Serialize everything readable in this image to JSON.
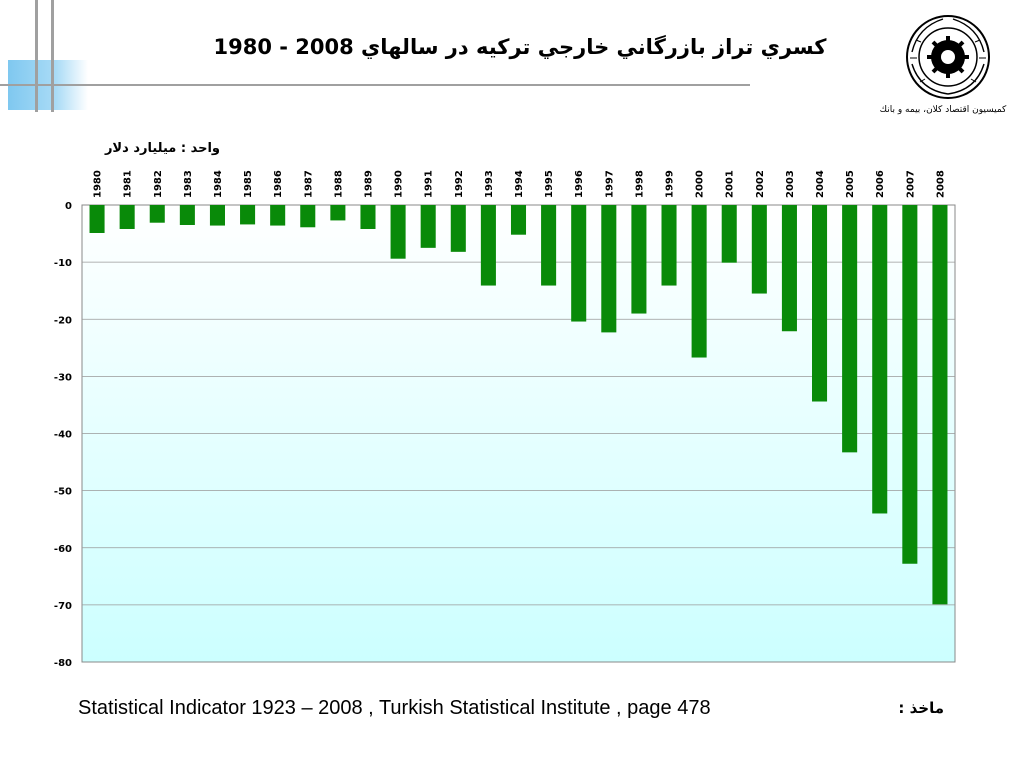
{
  "slide": {
    "title": "كسري تراز بازرگاني خارجي تركيه در سالهاي 2008 - 1980",
    "unit_label": "واحد : ميليارد دلار",
    "organization": "كميسيون اقتصاد كلان، بيمه و بانك",
    "source_label": "ماخذ :",
    "source_text": "Statistical Indicator 1923 – 2008 , Turkish Statistical Institute , page 478"
  },
  "colors": {
    "bar": "#098a09",
    "plot_bg_top": "#ffffff",
    "plot_bg_bottom": "#ccffff",
    "grid": "#999999",
    "accent_blue": "#7fc8f0"
  },
  "chart_data": {
    "type": "bar",
    "categories": [
      "1980",
      "1981",
      "1982",
      "1983",
      "1984",
      "1985",
      "1986",
      "1987",
      "1988",
      "1989",
      "1990",
      "1991",
      "1992",
      "1993",
      "1994",
      "1995",
      "1996",
      "1997",
      "1998",
      "1999",
      "2000",
      "2001",
      "2002",
      "2003",
      "2004",
      "2005",
      "2006",
      "2007",
      "2008"
    ],
    "values": [
      -4.9,
      -4.2,
      -3.1,
      -3.5,
      -3.6,
      -3.4,
      -3.6,
      -3.9,
      -2.7,
      -4.2,
      -9.4,
      -7.5,
      -8.2,
      -14.1,
      -5.2,
      -14.1,
      -20.4,
      -22.3,
      -19.0,
      -14.1,
      -26.7,
      -10.1,
      -15.5,
      -22.1,
      -34.4,
      -43.3,
      -54.0,
      -62.8,
      -69.9
    ],
    "title": "",
    "xlabel": "",
    "ylabel": "",
    "ylim": [
      -80,
      0
    ],
    "yticks": [
      0,
      -10,
      -20,
      -30,
      -40,
      -50,
      -60,
      -70,
      -80
    ],
    "grid": true,
    "x_labels_position": "top"
  }
}
